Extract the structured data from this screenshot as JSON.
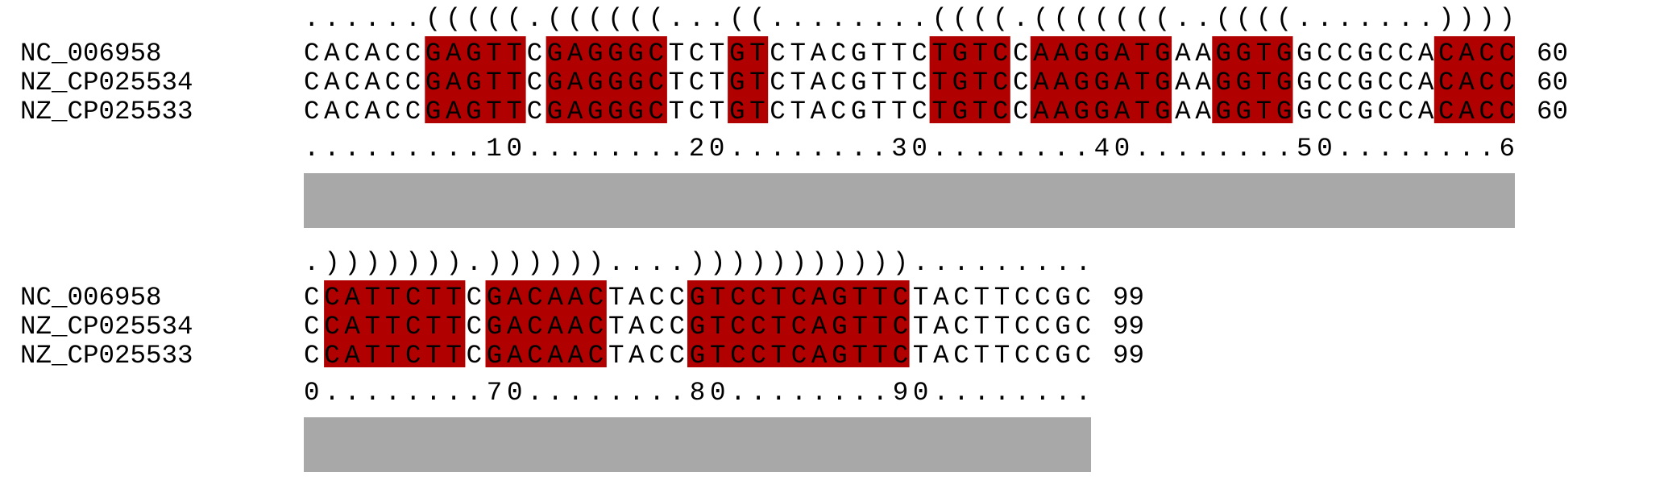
{
  "colors": {
    "paired_background": "#b00000",
    "conservation_bar": "#a8a8a8",
    "text": "#000000"
  },
  "blocks": [
    {
      "structure": "......(((((.((((((...((........((((.(((((((..((((.......))))",
      "sequences": [
        {
          "name": "NC_006958",
          "seq": "CACACCGAGTTCGAGGGCTCTGTCTACGTTCTGTCCAAGGATGAAGGTGGCCGCCACACC",
          "end": "60"
        },
        {
          "name": "NZ_CP025534",
          "seq": "CACACCGAGTTCGAGGGCTCTGTCTACGTTCTGTCCAAGGATGAAGGTGGCCGCCACACC",
          "end": "60"
        },
        {
          "name": "NZ_CP025533",
          "seq": "CACACCGAGTTCGAGGGCTCTGTCTACGTTCTGTCCAAGGATGAAGGTGGCCGCCACACC",
          "end": "60"
        }
      ],
      "ruler": ".........10........20........30........40........50........6",
      "conservation_fraction": 1.0
    },
    {
      "structure": ".))))))).))))))....))))))))))).........",
      "sequences": [
        {
          "name": "NC_006958",
          "seq": "CCATTCTTCGACAACTACCGTCCTCAGTTCTACTTCCGC",
          "end": "99"
        },
        {
          "name": "NZ_CP025534",
          "seq": "CCATTCTTCGACAACTACCGTCCTCAGTTCTACTTCCGC",
          "end": "99"
        },
        {
          "name": "NZ_CP025533",
          "seq": "CCATTCTTCGACAACTACCGTCCTCAGTTCTACTTCCGC",
          "end": "99"
        }
      ],
      "ruler": "0........70........80........90........",
      "conservation_fraction": 1.0
    }
  ]
}
